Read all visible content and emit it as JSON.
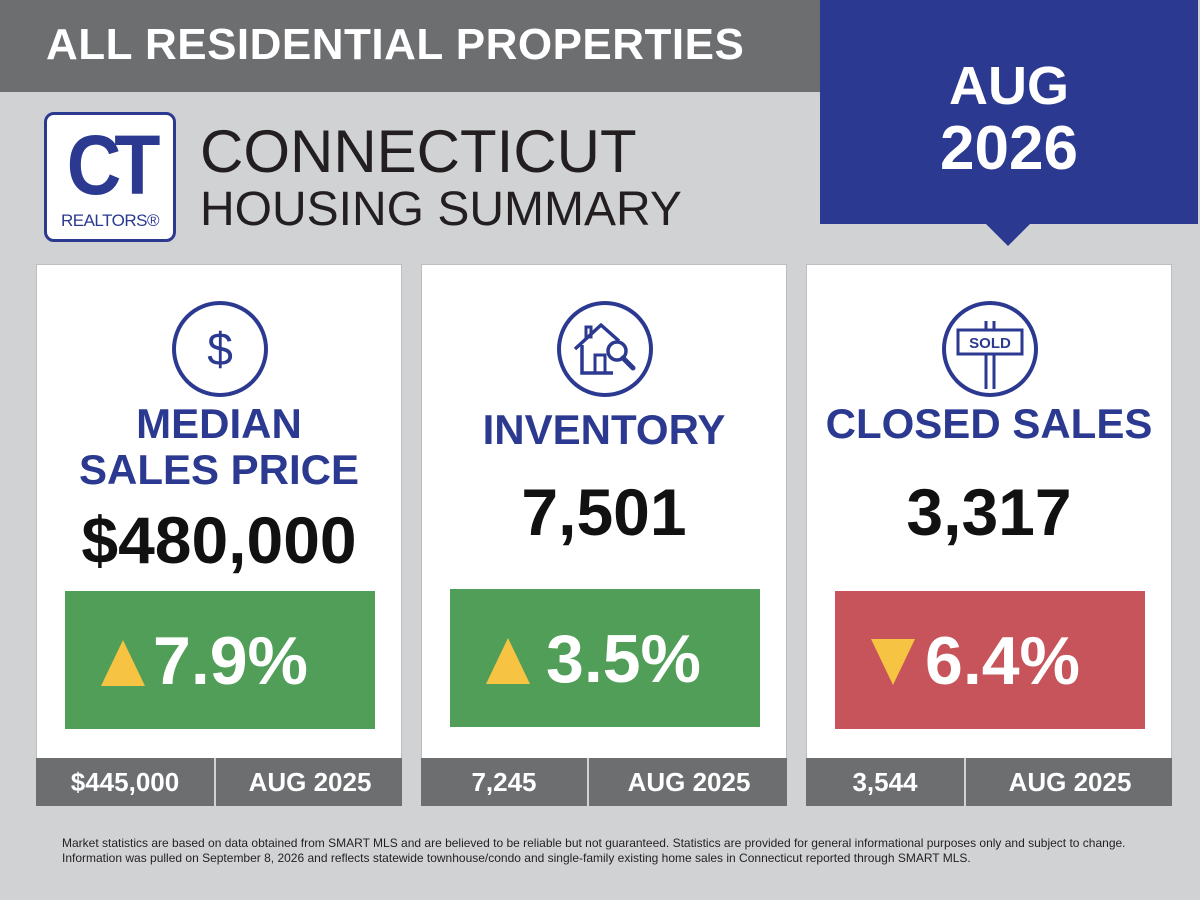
{
  "banner": {
    "text": "ALL RESIDENTIAL PROPERTIES"
  },
  "date": {
    "month": "AUG",
    "year": "2026"
  },
  "logo": {
    "letters": "CT",
    "subtitle": "REALTORS®"
  },
  "title": {
    "line1": "CONNECTICUT",
    "line2": "HOUSING SUMMARY"
  },
  "colors": {
    "brand_blue": "#2b3990",
    "up_green": "#509e57",
    "down_red": "#c7545a",
    "arrow_yellow": "#f6c343",
    "gray": "#6d6e70"
  },
  "cards": [
    {
      "icon": "dollar-icon",
      "heading_line1": "MEDIAN",
      "heading_line2": "SALES PRICE",
      "value": "$480,000",
      "direction": "up",
      "change": "7.9%",
      "prev_value": "$445,000",
      "prev_date": "AUG 2025"
    },
    {
      "icon": "house-search-icon",
      "heading_line1": "INVENTORY",
      "value": "7,501",
      "direction": "up",
      "change": "3.5%",
      "prev_value": "7,245",
      "prev_date": "AUG 2025"
    },
    {
      "icon": "sold-sign-icon",
      "heading_line1": "CLOSED SALES",
      "sign_text": "SOLD",
      "value": "3,317",
      "direction": "down",
      "change": "6.4%",
      "prev_value": "3,544",
      "prev_date": "AUG 2025"
    }
  ],
  "disclaimer": {
    "line1": "Market statistics are based on data obtained from SMART MLS and are believed to be reliable but not guaranteed. Statistics are provided for general informational purposes only and subject to change.",
    "line2": "Information was pulled on September 8, 2026 and reflects statewide townhouse/condo and single-family existing home sales in Connecticut reported through SMART MLS."
  }
}
